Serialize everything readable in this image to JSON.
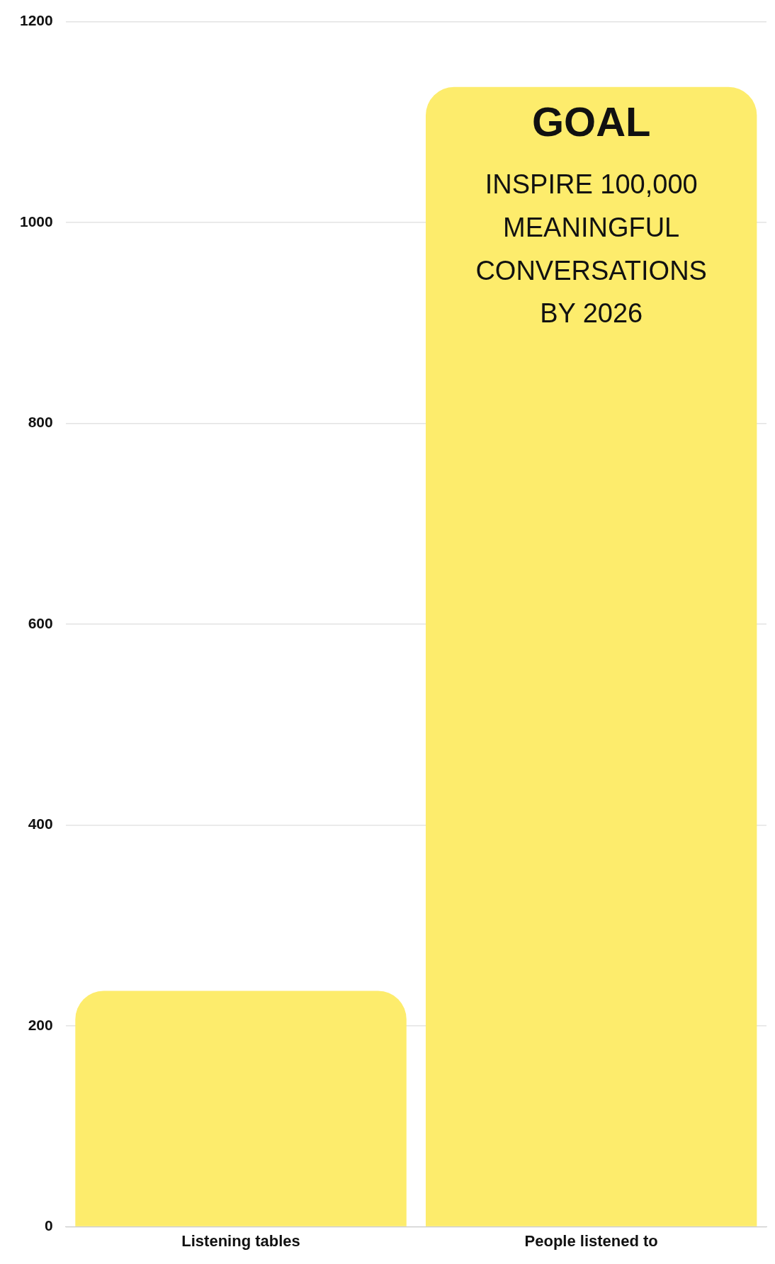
{
  "chart_data": {
    "type": "bar",
    "categories": [
      "Listening tables",
      "People listened to"
    ],
    "values": [
      235,
      1135
    ],
    "color": "#fdec6c",
    "ylim": [
      0,
      1200
    ],
    "yticks": [
      0,
      200,
      400,
      600,
      800,
      1000,
      1200
    ],
    "grid": "y",
    "legend": false,
    "annotations": [
      "GOAL",
      "INSPIRE 100,000 MEANINGFUL CONVERSATIONS BY 2026"
    ]
  }
}
